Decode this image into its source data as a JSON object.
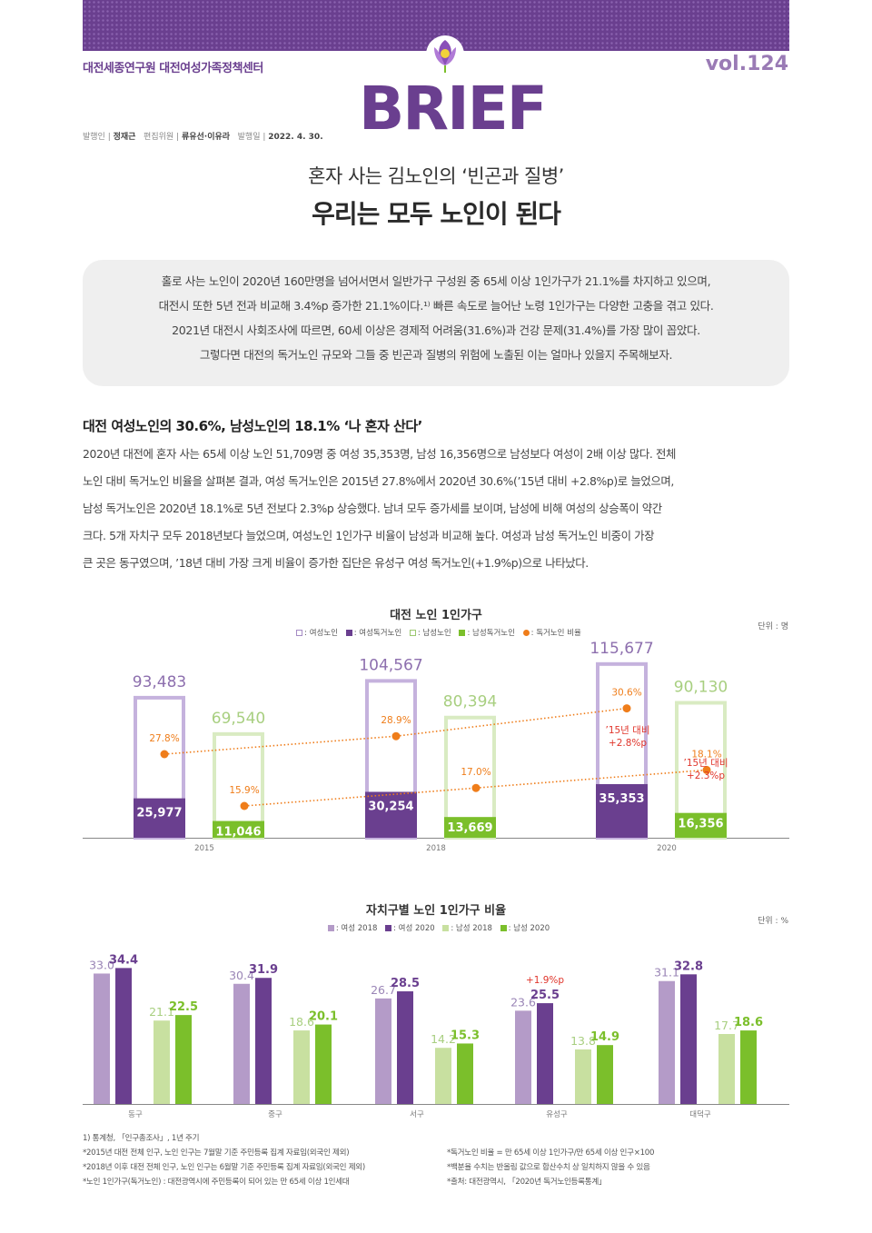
{
  "header": {
    "org": "대전세종연구원 대전여성가족정책센터",
    "volume": "vol.124",
    "brand": "BRIEF",
    "publisher_label": "발행인 |",
    "publisher": "정재근",
    "editor_label": "편집위원 |",
    "editors": "류유선·이유라",
    "date_label": "발행일 |",
    "date": "2022. 4. 30."
  },
  "title": {
    "line1": "혼자 사는 김노인의 ‘빈곤과 질병’",
    "line2": "우리는 모두 노인이 된다"
  },
  "summary": [
    "홀로 사는 노인이 2020년 160만명을 넘어서면서 일반가구 구성원 중 65세 이상 1인가구가 21.1%를 차지하고 있으며,",
    "대전시 또한 5년 전과 비교해 3.4%p 증가한 21.1%이다.¹⁾ 빠른 속도로 늘어난 노령 1인가구는 다양한 고충을 겪고 있다.",
    "2021년 대전시 사회조사에 따르면, 60세 이상은 경제적 어려움(31.6%)과 건강 문제(31.4%)를 가장 많이 꼽았다.",
    "그렇다면 대전의 독거노인 규모와 그들 중 빈곤과 질병의 위험에 노출된 이는 얼마나 있을지 주목해보자."
  ],
  "section": {
    "heading": "대전 여성노인의 30.6%, 남성노인의 18.1% ‘나 혼자 산다’",
    "body": [
      "2020년 대전에 혼자 사는 65세 이상 노인 51,709명 중 여성 35,353명, 남성 16,356명으로 남성보다 여성이 2배 이상 많다. 전체",
      "노인 대비 독거노인 비율을 살펴본 결과, 여성 독거노인은 2015년 27.8%에서 2020년 30.6%(’15년 대비 +2.8%p)로 늘었으며,",
      "남성 독거노인은 2020년 18.1%로 5년 전보다 2.3%p 상승했다. 남녀 모두 증가세를 보이며, 남성에 비해 여성의 상승폭이 약간",
      "크다. 5개 자치구 모두 2018년보다 늘었으며, 여성노인 1인가구 비율이 남성과 비교해 높다. 여성과 남성 독거노인 비중이 가장",
      "큰 곳은 동구였으며, ’18년 대비 가장 크게 비율이 증가한 집단은 유성구 여성 독거노인(+1.9%p)으로 나타났다."
    ]
  },
  "chart_data": [
    {
      "type": "bar",
      "title": "대전 노인 1인가구",
      "unit": "단위 : 명",
      "legend": [
        ": 여성노인",
        ": 여성독거노인",
        ": 남성노인",
        ": 남성독거노인",
        ": 독거노인 비율"
      ],
      "categories": [
        "2015",
        "2018",
        "2020"
      ],
      "series": [
        {
          "name": "여성노인",
          "values": [
            93483,
            104567,
            115677
          ],
          "labels": [
            "93,483",
            "104,567",
            "115,677"
          ],
          "color": "#c8b6dc"
        },
        {
          "name": "여성독거노인",
          "values": [
            25977,
            30254,
            35353
          ],
          "labels": [
            "25,977",
            "30,254",
            "35,353"
          ],
          "color": "#6a3f8f"
        },
        {
          "name": "남성노인",
          "values": [
            69540,
            80394,
            90130
          ],
          "labels": [
            "69,540",
            "80,394",
            "90,130"
          ],
          "color": "#d4e8b8"
        },
        {
          "name": "남성독거노인",
          "values": [
            11046,
            13669,
            16356
          ],
          "labels": [
            "11,046",
            "13,669",
            "16,356"
          ],
          "color": "#7bbf2b"
        }
      ],
      "ratio_lines": [
        {
          "name": "여성 독거노인 비율",
          "values": [
            27.8,
            28.9,
            30.6
          ],
          "labels": [
            "27.8%",
            "28.9%",
            "30.6%"
          ]
        },
        {
          "name": "남성 독거노인 비율",
          "values": [
            15.9,
            17.0,
            18.1
          ],
          "labels": [
            "15.9%",
            "17.0%",
            "18.1%"
          ]
        }
      ],
      "annotations": [
        {
          "lines": [
            "’15년 대비",
            "+2.8%p"
          ]
        },
        {
          "lines": [
            "’15년 대비",
            "+2.3%p"
          ]
        }
      ],
      "ratio_color": "#ef7d1a",
      "annotation_color": "#e0352b"
    },
    {
      "type": "bar",
      "title": "자치구별 노인 1인가구 비율",
      "unit": "단위 : %",
      "legend": [
        ": 여성 2018",
        ": 여성 2020",
        ": 남성 2018",
        ": 남성 2020"
      ],
      "categories": [
        "동구",
        "중구",
        "서구",
        "유성구",
        "대덕구"
      ],
      "series": [
        {
          "name": "여성 2018",
          "values": [
            33.0,
            30.4,
            26.7,
            23.6,
            31.1
          ],
          "labels": [
            "33.0",
            "30.4",
            "26.7",
            "23.6",
            "31.1"
          ],
          "color": "#b49bc8"
        },
        {
          "name": "여성 2020",
          "values": [
            34.4,
            31.9,
            28.5,
            25.5,
            32.8
          ],
          "labels": [
            "34.4",
            "31.9",
            "28.5",
            "25.5",
            "32.8"
          ],
          "color": "#6a3f8f"
        },
        {
          "name": "남성 2018",
          "values": [
            21.1,
            18.6,
            14.2,
            13.8,
            17.7
          ],
          "labels": [
            "21.1",
            "18.6",
            "14.2",
            "13.8",
            "17.7"
          ],
          "color": "#c8e0a0"
        },
        {
          "name": "남성 2020",
          "values": [
            22.5,
            20.1,
            15.3,
            14.9,
            18.6
          ],
          "labels": [
            "22.5",
            "20.1",
            "15.3",
            "14.9",
            "18.6"
          ],
          "color": "#7bbf2b"
        }
      ],
      "annotation": {
        "category": "유성구",
        "text": "+1.9%p",
        "color": "#e0352b"
      },
      "ylim": [
        0,
        40
      ]
    }
  ],
  "footnotes": {
    "left": [
      "1) 통계청, 「인구총조사」, 1년 주기",
      "*2015년 대전 전체 인구, 노인 인구는 7월말 기준 주민등록 집계 자료임(외국인 제외)",
      "*2018년 이후 대전 전체 인구, 노인 인구는 6월말 기준 주민등록 집계 자료임(외국인 제외)",
      "*노인 1인가구(독거노인) : 대전광역시에 주민등록이 되어 있는 만 65세 이상 1인세대"
    ],
    "right": [
      "*독거노인 비율 = 만 65세 이상 1인가구/만 65세 이상 인구×100",
      "*백분율 수치는 반올림 값으로 합산수치 상 일치하지 않을 수 있음",
      "*출처: 대전광역시, 「2020년 독거노인등록통계」"
    ]
  }
}
